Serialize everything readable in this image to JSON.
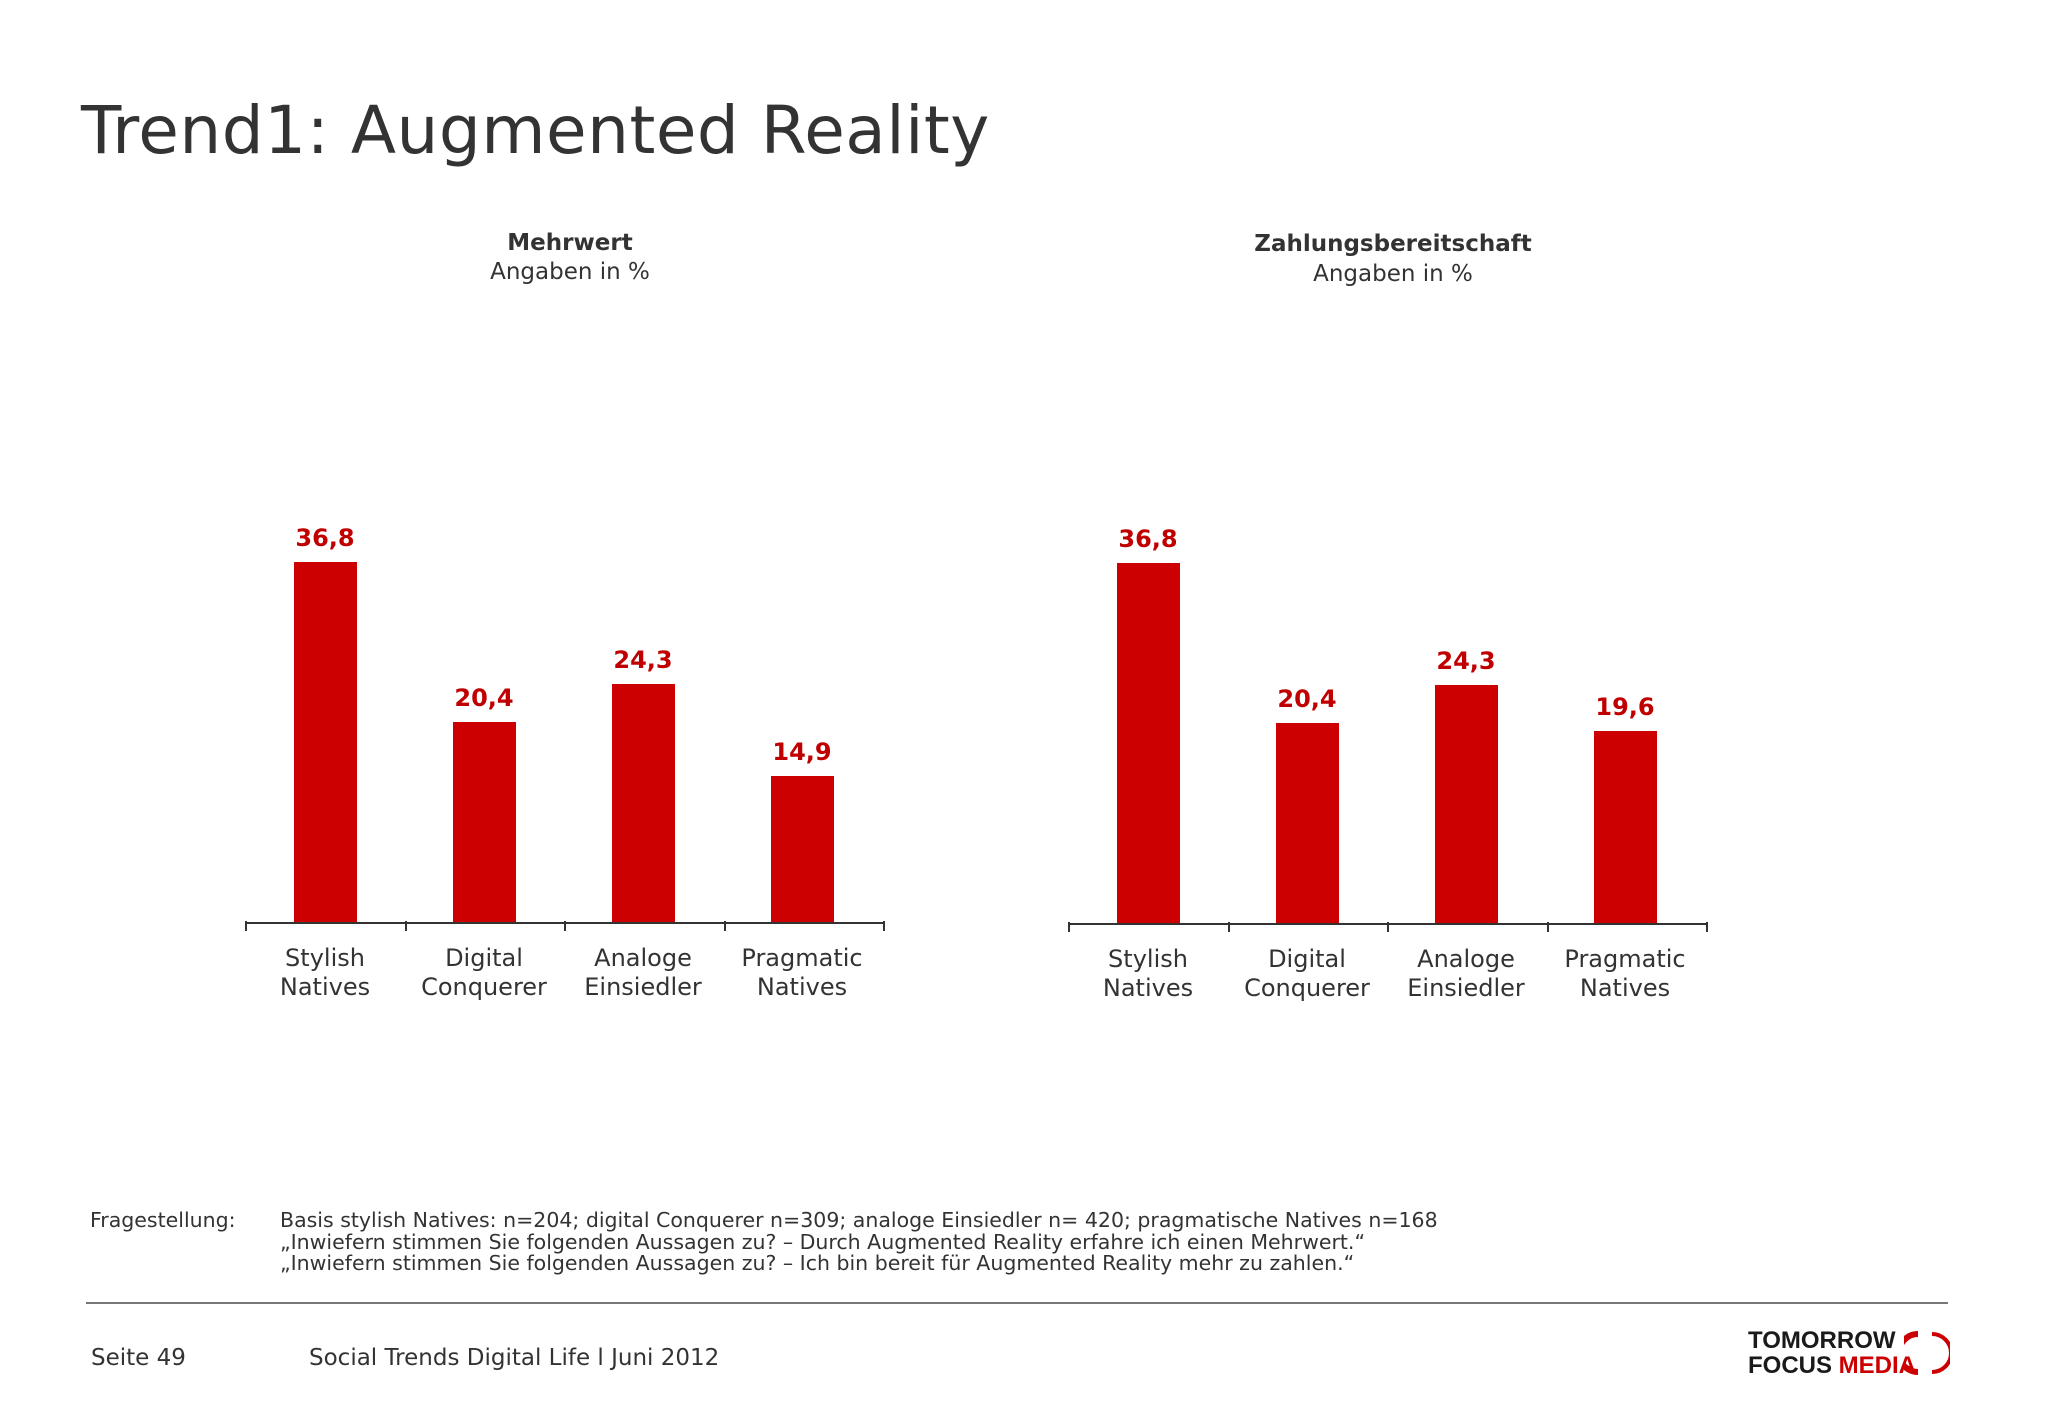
{
  "page": {
    "title": "Trend1: Augmented Reality"
  },
  "chart_data": [
    {
      "type": "bar",
      "title": "Mehrwert",
      "subtitle": "Angaben in %",
      "categories": [
        "Stylish Natives",
        "Digital Conquerer",
        "Analoge Einsiedler",
        "Pragmatic Natives"
      ],
      "category_lines": [
        [
          "Stylish",
          "Natives"
        ],
        [
          "Digital",
          "Conquerer"
        ],
        [
          "Analoge",
          "Einsiedler"
        ],
        [
          "Pragmatic",
          "Natives"
        ]
      ],
      "values": [
        36.8,
        20.4,
        24.3,
        14.9
      ],
      "value_labels": [
        "36,8",
        "20,4",
        "24,3",
        "14,9"
      ],
      "ylim": [
        0,
        40
      ],
      "grid": false,
      "bar_color": "#cc0000",
      "label_color": "#c00000"
    },
    {
      "type": "bar",
      "title": "Zahlungsbereitschaft",
      "subtitle": "Angaben in %",
      "categories": [
        "Stylish Natives",
        "Digital Conquerer",
        "Analoge Einsiedler",
        "Pragmatic Natives"
      ],
      "category_lines": [
        [
          "Stylish",
          "Natives"
        ],
        [
          "Digital",
          "Conquerer"
        ],
        [
          "Analoge",
          "Einsiedler"
        ],
        [
          "Pragmatic",
          "Natives"
        ]
      ],
      "values": [
        36.8,
        20.4,
        24.3,
        19.6
      ],
      "value_labels": [
        "36,8",
        "20,4",
        "24,3",
        "19,6"
      ],
      "ylim": [
        0,
        40
      ],
      "grid": false,
      "bar_color": "#cc0000",
      "label_color": "#c00000"
    }
  ],
  "footnote": {
    "label": "Fragestellung:",
    "lines": [
      "Basis stylish Natives: n=204; digital Conquerer n=309; analoge Einsiedler n= 420; pragmatische Natives n=168",
      "„Inwiefern stimmen Sie folgenden Aussagen zu? – Durch Augmented Reality erfahre ich einen Mehrwert.“",
      "„Inwiefern stimmen Sie folgenden Aussagen zu? – Ich bin bereit für Augmented Reality mehr zu zahlen.“"
    ]
  },
  "footer": {
    "page_label": "Seite  49",
    "text": "Social Trends Digital Life l Juni 2012",
    "logo_line1": "TOMORROW",
    "logo_line2_a": "FOCUS ",
    "logo_line2_b": "MEDIA",
    "logo_icon": "tomorrow-focus-arc-icon"
  }
}
